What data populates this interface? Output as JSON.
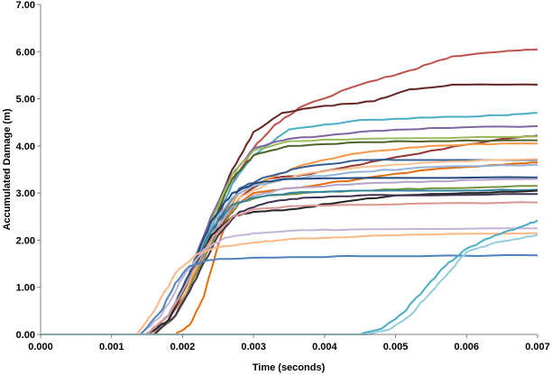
{
  "chart_data": {
    "type": "line",
    "title": "",
    "xlabel": "Time (seconds)",
    "ylabel": "Accumulated Damage (m)",
    "xlim": [
      0,
      0.007
    ],
    "ylim": [
      0,
      7
    ],
    "x_ticks": [
      "0.000",
      "0.001",
      "0.002",
      "0.003",
      "0.004",
      "0.005",
      "0.006",
      "0.007"
    ],
    "y_ticks": [
      "0.00",
      "1.00",
      "2.00",
      "3.00",
      "4.00",
      "5.00",
      "6.00",
      "7.00"
    ],
    "x_tick_values": [
      0,
      0.001,
      0.002,
      0.003,
      0.004,
      0.005,
      0.006,
      0.007
    ],
    "y_tick_values": [
      0,
      1,
      2,
      3,
      4,
      5,
      6,
      7
    ],
    "grid": false,
    "legend": "none",
    "series": [
      {
        "color": "#c0504d",
        "points": [
          [
            0,
            0
          ],
          [
            0.00148,
            0
          ],
          [
            0.0018,
            0.3
          ],
          [
            0.0021,
            1.0
          ],
          [
            0.0024,
            2.1
          ],
          [
            0.0027,
            3.2
          ],
          [
            0.003,
            3.95
          ],
          [
            0.0033,
            4.45
          ],
          [
            0.0037,
            4.85
          ],
          [
            0.0045,
            5.3
          ],
          [
            0.0052,
            5.6
          ],
          [
            0.0058,
            5.9
          ],
          [
            0.0065,
            6.0
          ],
          [
            0.007,
            6.05
          ]
        ]
      },
      {
        "color": "#632523",
        "points": [
          [
            0,
            0
          ],
          [
            0.0015,
            0
          ],
          [
            0.0018,
            0.3
          ],
          [
            0.0021,
            1.2
          ],
          [
            0.0024,
            2.4
          ],
          [
            0.0027,
            3.5
          ],
          [
            0.003,
            4.3
          ],
          [
            0.0034,
            4.7
          ],
          [
            0.004,
            4.85
          ],
          [
            0.0047,
            4.95
          ],
          [
            0.0052,
            5.2
          ],
          [
            0.0058,
            5.3
          ],
          [
            0.007,
            5.3
          ]
        ]
      },
      {
        "color": "#4bacc6",
        "points": [
          [
            0,
            0
          ],
          [
            0.0015,
            0
          ],
          [
            0.0018,
            0.3
          ],
          [
            0.0021,
            1.2
          ],
          [
            0.0024,
            2.2
          ],
          [
            0.0027,
            3.2
          ],
          [
            0.003,
            3.8
          ],
          [
            0.0035,
            4.35
          ],
          [
            0.0045,
            4.55
          ],
          [
            0.0055,
            4.6
          ],
          [
            0.0065,
            4.65
          ],
          [
            0.007,
            4.7
          ]
        ]
      },
      {
        "color": "#8064a2",
        "points": [
          [
            0,
            0
          ],
          [
            0.0015,
            0
          ],
          [
            0.0018,
            0.3
          ],
          [
            0.0021,
            1.3
          ],
          [
            0.0024,
            2.5
          ],
          [
            0.0027,
            3.4
          ],
          [
            0.003,
            3.95
          ],
          [
            0.0035,
            4.15
          ],
          [
            0.0045,
            4.3
          ],
          [
            0.0055,
            4.38
          ],
          [
            0.007,
            4.42
          ]
        ]
      },
      {
        "color": "#953735",
        "points": [
          [
            0,
            0
          ],
          [
            0.0016,
            0
          ],
          [
            0.0019,
            0.4
          ],
          [
            0.0022,
            1.3
          ],
          [
            0.0025,
            2.2
          ],
          [
            0.0028,
            2.9
          ],
          [
            0.0032,
            3.3
          ],
          [
            0.0038,
            3.4
          ],
          [
            0.0045,
            3.6
          ],
          [
            0.0055,
            3.9
          ],
          [
            0.0065,
            4.15
          ],
          [
            0.007,
            4.22
          ]
        ]
      },
      {
        "color": "#4f6228",
        "points": [
          [
            0,
            0
          ],
          [
            0.0015,
            0
          ],
          [
            0.0018,
            0.3
          ],
          [
            0.0021,
            1.2
          ],
          [
            0.0024,
            2.3
          ],
          [
            0.0027,
            3.3
          ],
          [
            0.003,
            3.8
          ],
          [
            0.0035,
            4.0
          ],
          [
            0.0045,
            4.08
          ],
          [
            0.0055,
            4.1
          ],
          [
            0.007,
            4.12
          ]
        ]
      },
      {
        "color": "#9bbb59",
        "points": [
          [
            0,
            0
          ],
          [
            0.0015,
            0
          ],
          [
            0.0018,
            0.3
          ],
          [
            0.0021,
            1.3
          ],
          [
            0.0024,
            2.4
          ],
          [
            0.0027,
            3.4
          ],
          [
            0.003,
            3.9
          ],
          [
            0.0035,
            4.1
          ],
          [
            0.0045,
            4.15
          ],
          [
            0.007,
            4.2
          ]
        ]
      },
      {
        "color": "#f79646",
        "points": [
          [
            0,
            0
          ],
          [
            0.0016,
            0
          ],
          [
            0.0019,
            0.4
          ],
          [
            0.0022,
            1.4
          ],
          [
            0.0025,
            2.4
          ],
          [
            0.0028,
            3.0
          ],
          [
            0.0032,
            3.3
          ],
          [
            0.0037,
            3.6
          ],
          [
            0.0045,
            3.85
          ],
          [
            0.0055,
            4.0
          ],
          [
            0.0065,
            4.05
          ],
          [
            0.007,
            4.05
          ]
        ]
      },
      {
        "color": "#376092",
        "points": [
          [
            0,
            0
          ],
          [
            0.0016,
            0
          ],
          [
            0.0019,
            0.4
          ],
          [
            0.0022,
            1.3
          ],
          [
            0.0025,
            2.4
          ],
          [
            0.0028,
            3.1
          ],
          [
            0.0032,
            3.35
          ],
          [
            0.0037,
            3.55
          ],
          [
            0.0045,
            3.7
          ],
          [
            0.0055,
            3.7
          ],
          [
            0.007,
            3.7
          ]
        ]
      },
      {
        "color": "#fac090",
        "points": [
          [
            0,
            0
          ],
          [
            0.00155,
            0
          ],
          [
            0.0019,
            0.4
          ],
          [
            0.0022,
            1.3
          ],
          [
            0.0025,
            2.3
          ],
          [
            0.0028,
            2.9
          ],
          [
            0.0032,
            3.2
          ],
          [
            0.0037,
            3.4
          ],
          [
            0.0045,
            3.55
          ],
          [
            0.0055,
            3.65
          ],
          [
            0.007,
            3.72
          ]
        ]
      },
      {
        "color": "#e46c0a",
        "points": [
          [
            0,
            0
          ],
          [
            0.0019,
            0
          ],
          [
            0.0021,
            0.2
          ],
          [
            0.0023,
            0.8
          ],
          [
            0.0025,
            1.9
          ],
          [
            0.0027,
            2.7
          ],
          [
            0.003,
            3.0
          ],
          [
            0.0035,
            3.1
          ],
          [
            0.0045,
            3.3
          ],
          [
            0.0055,
            3.5
          ],
          [
            0.0065,
            3.6
          ],
          [
            0.007,
            3.65
          ]
        ]
      },
      {
        "color": "#95b3d7",
        "points": [
          [
            0,
            0
          ],
          [
            0.0015,
            0
          ],
          [
            0.0018,
            0.4
          ],
          [
            0.0021,
            1.3
          ],
          [
            0.0024,
            2.3
          ],
          [
            0.0027,
            2.9
          ],
          [
            0.003,
            3.15
          ],
          [
            0.0035,
            3.3
          ],
          [
            0.0045,
            3.45
          ],
          [
            0.0055,
            3.55
          ],
          [
            0.007,
            3.6
          ]
        ]
      },
      {
        "color": "#1f497d",
        "points": [
          [
            0,
            0
          ],
          [
            0.0015,
            0
          ],
          [
            0.0018,
            0.4
          ],
          [
            0.0021,
            1.3
          ],
          [
            0.0024,
            2.4
          ],
          [
            0.0027,
            3.0
          ],
          [
            0.003,
            3.2
          ],
          [
            0.0035,
            3.3
          ],
          [
            0.0045,
            3.32
          ],
          [
            0.007,
            3.33
          ]
        ]
      },
      {
        "color": "#b3a2c7",
        "points": [
          [
            0,
            0
          ],
          [
            0.0015,
            0
          ],
          [
            0.0018,
            0.4
          ],
          [
            0.0021,
            1.2
          ],
          [
            0.0024,
            2.1
          ],
          [
            0.0027,
            2.7
          ],
          [
            0.003,
            2.95
          ],
          [
            0.0035,
            3.1
          ],
          [
            0.0045,
            3.2
          ],
          [
            0.0055,
            3.25
          ],
          [
            0.007,
            3.3
          ]
        ]
      },
      {
        "color": "#77933c",
        "points": [
          [
            0,
            0
          ],
          [
            0.0016,
            0
          ],
          [
            0.0019,
            0.4
          ],
          [
            0.0022,
            1.3
          ],
          [
            0.0025,
            2.2
          ],
          [
            0.0028,
            2.8
          ],
          [
            0.0032,
            2.95
          ],
          [
            0.0037,
            3.0
          ],
          [
            0.0045,
            3.05
          ],
          [
            0.0055,
            3.1
          ],
          [
            0.007,
            3.15
          ]
        ]
      },
      {
        "color": "#31859c",
        "points": [
          [
            0,
            0
          ],
          [
            0.0015,
            0
          ],
          [
            0.0018,
            0.3
          ],
          [
            0.0021,
            1.2
          ],
          [
            0.0024,
            2.2
          ],
          [
            0.0027,
            2.75
          ],
          [
            0.003,
            2.9
          ],
          [
            0.0035,
            3.0
          ],
          [
            0.0045,
            3.05
          ],
          [
            0.0055,
            3.05
          ],
          [
            0.007,
            3.07
          ]
        ]
      },
      {
        "color": "#262626",
        "points": [
          [
            0,
            0
          ],
          [
            0.0015,
            0
          ],
          [
            0.0018,
            0.3
          ],
          [
            0.0021,
            1.2
          ],
          [
            0.0024,
            2.1
          ],
          [
            0.0027,
            2.5
          ],
          [
            0.003,
            2.6
          ],
          [
            0.0035,
            2.65
          ],
          [
            0.0042,
            2.8
          ],
          [
            0.005,
            2.95
          ],
          [
            0.006,
            3.0
          ],
          [
            0.007,
            3.05
          ]
        ]
      },
      {
        "color": "#403152",
        "points": [
          [
            0,
            0
          ],
          [
            0.0016,
            0
          ],
          [
            0.0019,
            0.4
          ],
          [
            0.0022,
            1.2
          ],
          [
            0.0025,
            2.1
          ],
          [
            0.0028,
            2.6
          ],
          [
            0.0032,
            2.8
          ],
          [
            0.0037,
            2.9
          ],
          [
            0.0045,
            2.95
          ],
          [
            0.0055,
            2.95
          ],
          [
            0.007,
            2.98
          ]
        ]
      },
      {
        "color": "#d99694",
        "points": [
          [
            0,
            0
          ],
          [
            0.0015,
            0
          ],
          [
            0.0018,
            0.4
          ],
          [
            0.0021,
            1.2
          ],
          [
            0.0024,
            2.0
          ],
          [
            0.0027,
            2.5
          ],
          [
            0.003,
            2.65
          ],
          [
            0.0035,
            2.72
          ],
          [
            0.0045,
            2.75
          ],
          [
            0.0055,
            2.78
          ],
          [
            0.007,
            2.8
          ]
        ]
      },
      {
        "color": "#c3b4d5",
        "points": [
          [
            0,
            0
          ],
          [
            0.0014,
            0
          ],
          [
            0.0017,
            0.4
          ],
          [
            0.002,
            1.2
          ],
          [
            0.0023,
            1.8
          ],
          [
            0.0026,
            2.05
          ],
          [
            0.003,
            2.15
          ],
          [
            0.0035,
            2.2
          ],
          [
            0.0045,
            2.23
          ],
          [
            0.007,
            2.25
          ]
        ]
      },
      {
        "color": "#fab884",
        "points": [
          [
            0,
            0
          ],
          [
            0.00135,
            0
          ],
          [
            0.0016,
            0.5
          ],
          [
            0.0019,
            1.3
          ],
          [
            0.0022,
            1.7
          ],
          [
            0.0025,
            1.85
          ],
          [
            0.003,
            1.95
          ],
          [
            0.0035,
            2.02
          ],
          [
            0.0045,
            2.08
          ],
          [
            0.0055,
            2.12
          ],
          [
            0.007,
            2.15
          ]
        ]
      },
      {
        "color": "#4f81bd",
        "points": [
          [
            0,
            0
          ],
          [
            0.0014,
            0
          ],
          [
            0.0017,
            0.5
          ],
          [
            0.0019,
            1.1
          ],
          [
            0.0021,
            1.45
          ],
          [
            0.0023,
            1.55
          ],
          [
            0.0025,
            1.6
          ],
          [
            0.0035,
            1.64
          ],
          [
            0.0045,
            1.66
          ],
          [
            0.007,
            1.68
          ]
        ]
      },
      {
        "color": "#4bacc6",
        "points": [
          [
            0,
            0
          ],
          [
            0.0045,
            0
          ],
          [
            0.0048,
            0.12
          ],
          [
            0.0051,
            0.45
          ],
          [
            0.0054,
            0.95
          ],
          [
            0.0057,
            1.45
          ],
          [
            0.006,
            1.82
          ],
          [
            0.0064,
            2.1
          ],
          [
            0.0068,
            2.3
          ],
          [
            0.007,
            2.42
          ]
        ]
      },
      {
        "color": "#92cddc",
        "points": [
          [
            0,
            0
          ],
          [
            0.0046,
            0
          ],
          [
            0.0049,
            0.1
          ],
          [
            0.0052,
            0.4
          ],
          [
            0.0055,
            0.9
          ],
          [
            0.0058,
            1.4
          ],
          [
            0.006,
            1.75
          ],
          [
            0.0064,
            1.95
          ],
          [
            0.0068,
            2.05
          ],
          [
            0.007,
            2.12
          ]
        ]
      }
    ]
  }
}
